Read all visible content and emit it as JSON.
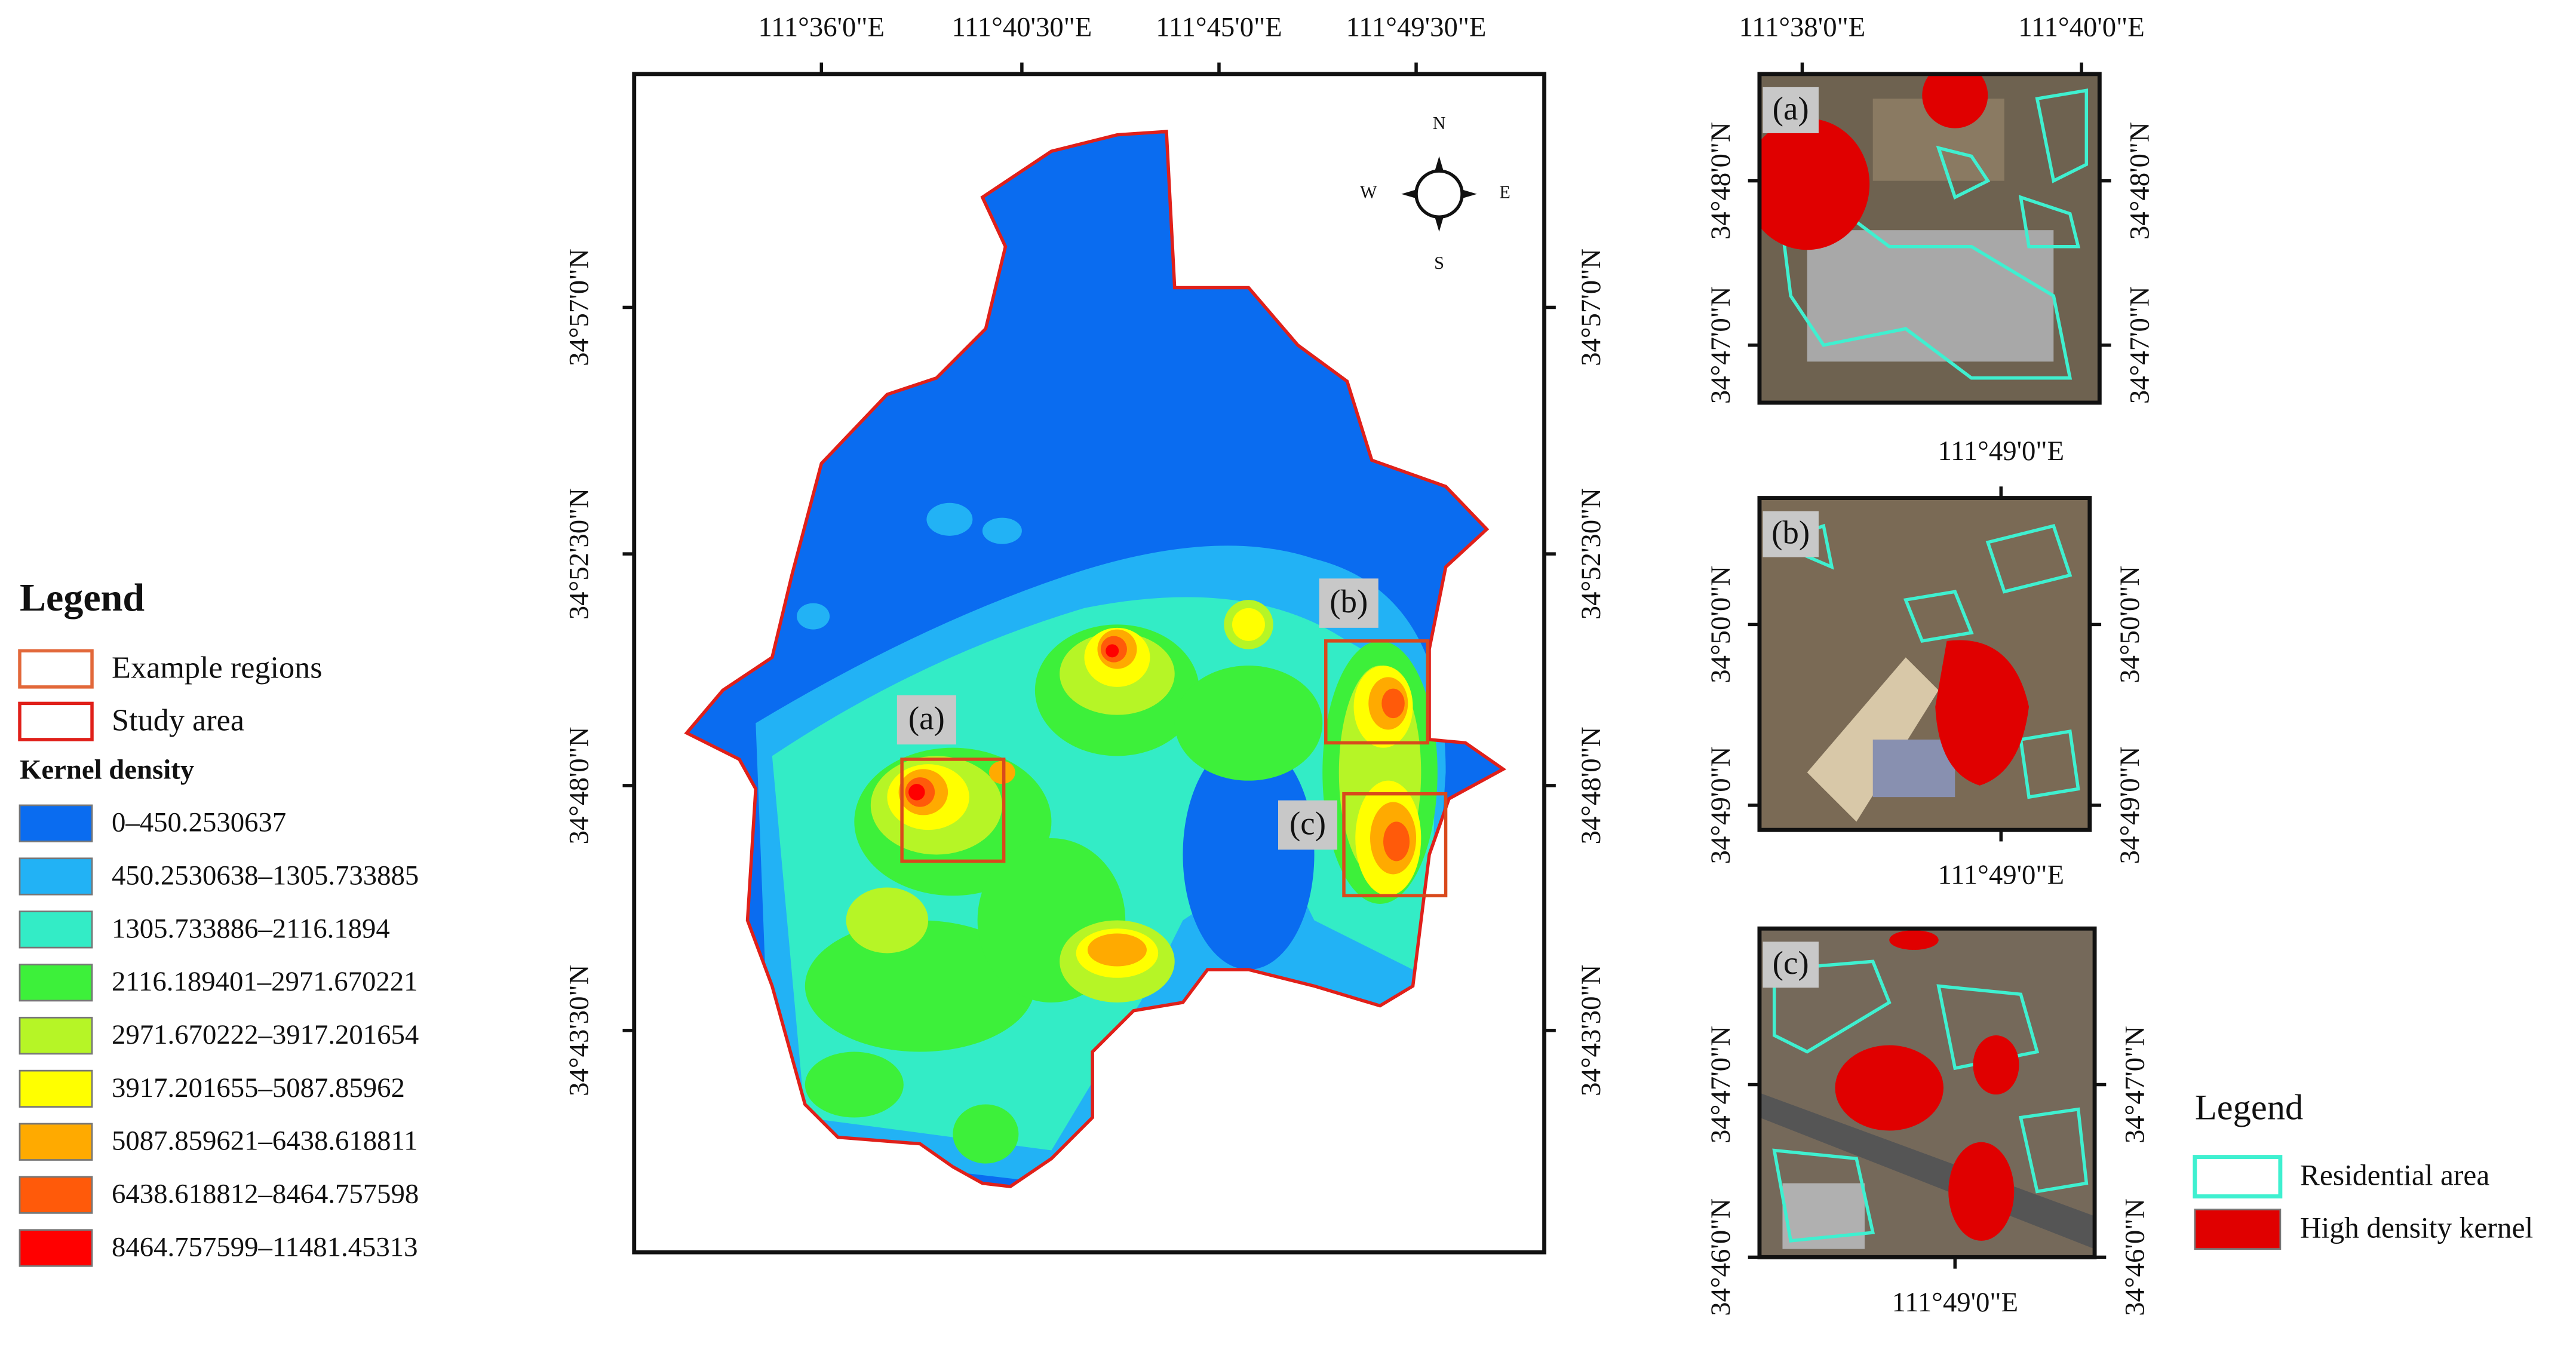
{
  "main_map": {
    "top_labels": [
      "111°36'0\"E",
      "111°40'30\"E",
      "111°45'0\"E",
      "111°49'30\"E"
    ],
    "left_labels": [
      "34°57'0\"N",
      "34°52'30\"N",
      "34°48'0\"N",
      "34°43'30\"N"
    ],
    "right_labels": [
      "34°57'0\"N",
      "34°52'30\"N",
      "34°48'0\"N",
      "34°43'30\"N"
    ],
    "compass": [
      "N",
      "E",
      "S",
      "W"
    ],
    "region_labels": [
      "(a)",
      "(b)",
      "(c)"
    ]
  },
  "legend": {
    "title": "Legend",
    "items": [
      "Example regions",
      "Study area"
    ],
    "kernel_title": "Kernel density",
    "classes": [
      {
        "label": "0–450.2530637",
        "color": "#0a6cf0"
      },
      {
        "label": "450.2530638–1305.733885",
        "color": "#22b2f5"
      },
      {
        "label": "1305.733886–2116.1894",
        "color": "#33ecc6"
      },
      {
        "label": "2116.189401–2971.670221",
        "color": "#3df03a"
      },
      {
        "label": "2971.670222–3917.201654",
        "color": "#b6f526"
      },
      {
        "label": "3917.201655–5087.85962",
        "color": "#ffff00"
      },
      {
        "label": "5087.859621–6438.618811",
        "color": "#ffaa00"
      },
      {
        "label": "6438.618812–8464.757598",
        "color": "#ff5a0a"
      },
      {
        "label": "8464.757599–11481.45313",
        "color": "#ff0000"
      }
    ]
  },
  "insets": [
    {
      "label": "(a)",
      "top_labels": [
        "111°38'0\"E",
        "111°40'0\"E"
      ],
      "left_labels": [
        "34°48'0\"N",
        "34°47'0\"N"
      ],
      "right_labels": [
        "34°48'0\"N",
        "34°47'0\"N"
      ]
    },
    {
      "label": "(b)",
      "top_labels": [
        "111°49'0\"E"
      ],
      "bottom_labels": [
        "111°49'0\"E"
      ],
      "left_labels": [
        "34°50'0\"N",
        "34°49'0\"N"
      ],
      "right_labels": [
        "34°50'0\"N",
        "34°49'0\"N"
      ]
    },
    {
      "label": "(c)",
      "bottom_labels": [
        "111°49'0\"E"
      ],
      "left_labels": [
        "34°47'0\"N",
        "34°46'0\"N"
      ],
      "right_labels": [
        "34°47'0\"N",
        "34°46'0\"N"
      ]
    }
  ],
  "inset_legend": {
    "title": "Legend",
    "items": [
      {
        "label": "Residential area",
        "color": "#3ff0d0"
      },
      {
        "label": "High density kernel",
        "color": "#e00000"
      }
    ]
  }
}
